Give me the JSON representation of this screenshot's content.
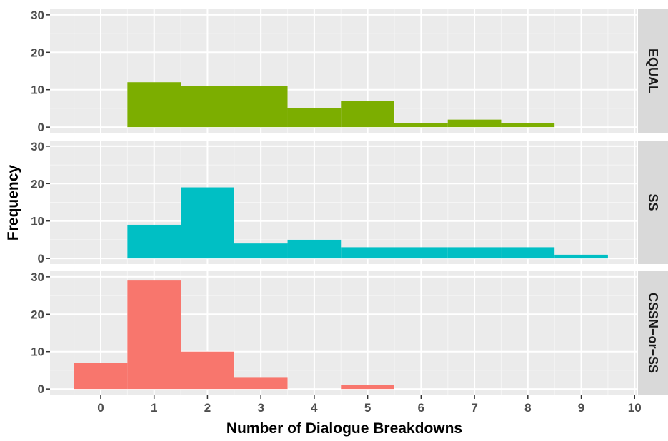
{
  "chart_data": {
    "type": "bar",
    "xlabel": "Number of Dialogue Breakdowns",
    "ylabel": "Frequency",
    "xlim": [
      -0.95,
      10.05
    ],
    "ylim": [
      0,
      30
    ],
    "x_ticks": [
      0,
      1,
      2,
      3,
      4,
      5,
      6,
      7,
      8,
      9,
      10
    ],
    "y_ticks": [
      0,
      10,
      20,
      30
    ],
    "grid": true,
    "bin_width": 1,
    "panels": [
      {
        "name": "EQUAL",
        "color": "#7CAE00",
        "bins": [
          1,
          2,
          3,
          4,
          5,
          6,
          7,
          8
        ],
        "values": [
          12,
          11,
          11,
          5,
          7,
          1,
          2,
          1
        ]
      },
      {
        "name": "SS",
        "color": "#00BFC4",
        "bins": [
          1,
          2,
          3,
          4,
          5,
          6,
          7,
          8,
          9
        ],
        "values": [
          9,
          19,
          4,
          5,
          3,
          3,
          3,
          3,
          1
        ]
      },
      {
        "name": "CSSN−or−SS",
        "color": "#F8766D",
        "bins": [
          0,
          1,
          2,
          3,
          4,
          5
        ],
        "values": [
          7,
          29,
          10,
          3,
          0,
          1
        ]
      }
    ]
  }
}
